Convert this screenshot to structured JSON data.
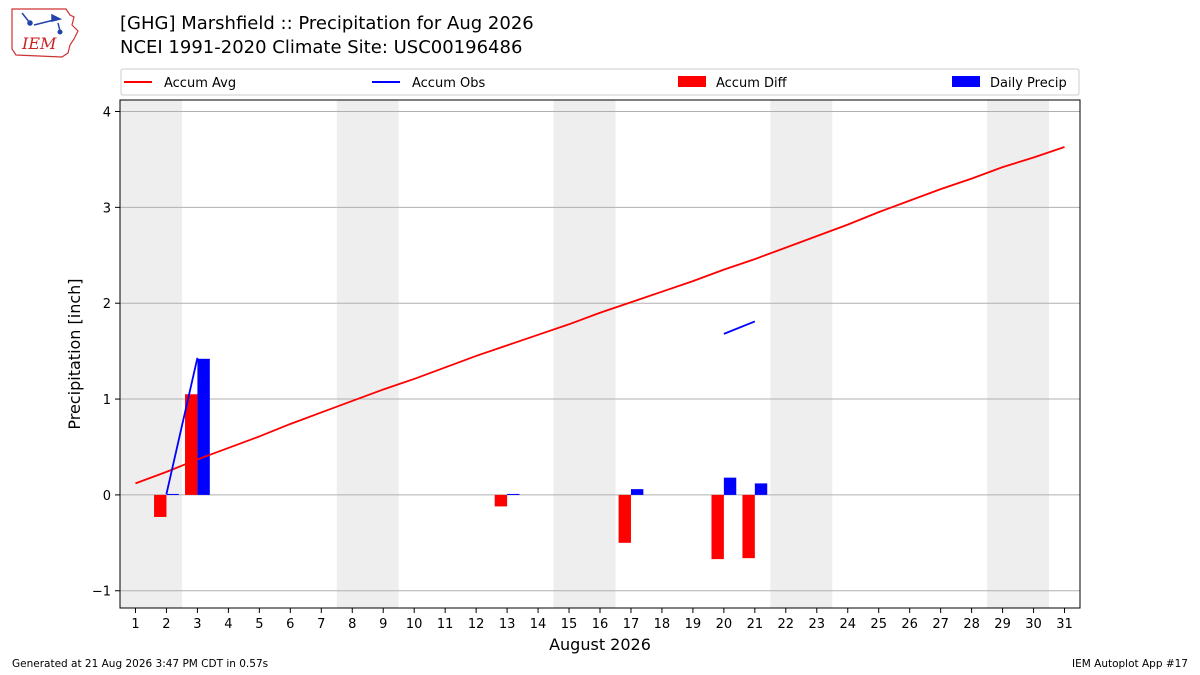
{
  "header": {
    "title": "[GHG] Marshfield :: Precipitation for Aug 2026",
    "subtitle": "NCEI 1991-2020 Climate Site: USC00196486",
    "logo_text": "IEM"
  },
  "footer": {
    "generated": "Generated at 21 Aug 2026 3:47 PM CDT in 0.57s",
    "app": "IEM Autoplot App #17"
  },
  "colors": {
    "accum_avg": "#ff0000",
    "accum_obs": "#0000ff",
    "accum_diff": "#ff0000",
    "daily_precip": "#0000ff",
    "weekend_shade": "#eeeeee",
    "grid": "#b0b0b0"
  },
  "chart_data": {
    "type": "bar",
    "xlabel": "August 2026",
    "ylabel": "Precipitation [inch]",
    "x": [
      1,
      2,
      3,
      4,
      5,
      6,
      7,
      8,
      9,
      10,
      11,
      12,
      13,
      14,
      15,
      16,
      17,
      18,
      19,
      20,
      21,
      22,
      23,
      24,
      25,
      26,
      27,
      28,
      29,
      30,
      31
    ],
    "xlim": [
      0.5,
      31.5
    ],
    "ylim": [
      -1.18,
      4.12
    ],
    "yticks": [
      -1,
      0,
      1,
      2,
      3,
      4
    ],
    "ytick_labels": [
      "−1",
      "0",
      "1",
      "2",
      "3",
      "4"
    ],
    "grid": "horizontal",
    "legend_position": "top",
    "weekend_shading": [
      [
        0.5,
        2.5
      ],
      [
        7.5,
        9.5
      ],
      [
        14.5,
        16.5
      ],
      [
        21.5,
        23.5
      ],
      [
        28.5,
        30.5
      ]
    ],
    "legend": [
      {
        "label": "Accum Avg",
        "kind": "line",
        "color": "#ff0000"
      },
      {
        "label": "Accum Obs",
        "kind": "line",
        "color": "#0000ff"
      },
      {
        "label": "Accum Diff",
        "kind": "bar",
        "color": "#ff0000"
      },
      {
        "label": "Daily Precip",
        "kind": "bar",
        "color": "#0000ff"
      }
    ],
    "series": [
      {
        "name": "Accum Avg",
        "kind": "line",
        "values": [
          0.12,
          0.24,
          0.37,
          0.49,
          0.61,
          0.74,
          0.86,
          0.98,
          1.1,
          1.21,
          1.33,
          1.45,
          1.56,
          1.67,
          1.78,
          1.9,
          2.01,
          2.12,
          2.23,
          2.35,
          2.46,
          2.58,
          2.7,
          2.82,
          2.95,
          3.07,
          3.19,
          3.3,
          3.42,
          3.52,
          3.63
        ]
      },
      {
        "name": "Accum Obs",
        "kind": "line",
        "values": [
          null,
          0.01,
          1.43,
          null,
          null,
          null,
          null,
          null,
          null,
          null,
          null,
          null,
          null,
          null,
          null,
          null,
          null,
          null,
          null,
          1.68,
          1.81,
          null,
          null,
          null,
          null,
          null,
          null,
          null,
          null,
          null,
          null
        ]
      },
      {
        "name": "Accum Diff",
        "kind": "bar",
        "values": [
          null,
          -0.23,
          1.05,
          null,
          null,
          null,
          null,
          null,
          null,
          null,
          null,
          null,
          -0.12,
          null,
          null,
          null,
          -0.5,
          null,
          null,
          -0.67,
          -0.66,
          null,
          null,
          null,
          null,
          null,
          null,
          null,
          null,
          null,
          null
        ]
      },
      {
        "name": "Daily Precip",
        "kind": "bar",
        "values": [
          null,
          0.01,
          1.42,
          null,
          null,
          null,
          null,
          null,
          null,
          null,
          null,
          null,
          0.01,
          null,
          null,
          null,
          0.06,
          null,
          null,
          0.18,
          0.12,
          null,
          null,
          null,
          null,
          null,
          null,
          null,
          null,
          null,
          null
        ]
      }
    ]
  }
}
